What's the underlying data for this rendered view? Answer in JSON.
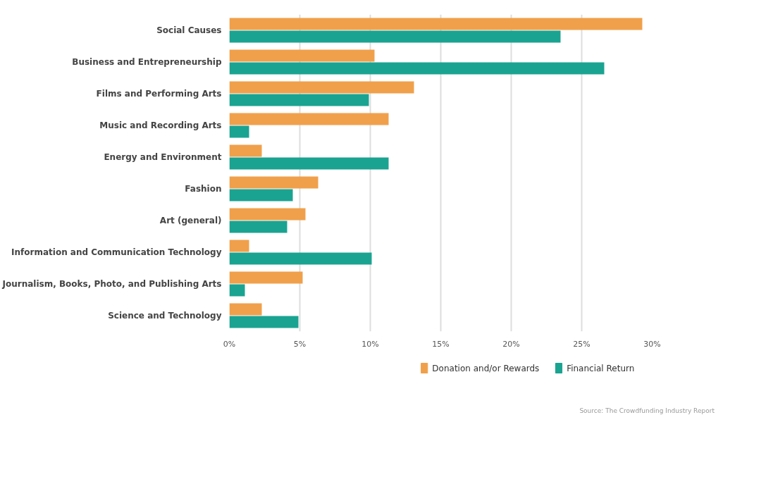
{
  "chart_data": {
    "type": "bar",
    "orientation": "horizontal",
    "categories": [
      "Social Causes",
      "Business and Entrepreneurship",
      "Films and Performing Arts",
      "Music and Recording Arts",
      "Energy and Environment",
      "Fashion",
      "Art (general)",
      "Information and Communication Technology",
      "Journalism, Books, Photo, and Publishing Arts",
      "Science and Technology"
    ],
    "series": [
      {
        "name": "Donation and/or Rewards",
        "color": "#f0a04b",
        "values": [
          29.3,
          10.3,
          13.1,
          11.3,
          2.3,
          6.3,
          5.4,
          1.4,
          5.2,
          2.3
        ]
      },
      {
        "name": "Financial Return",
        "color": "#1aa391",
        "values": [
          23.5,
          26.6,
          9.9,
          1.4,
          11.3,
          4.5,
          4.1,
          10.1,
          1.1,
          4.9
        ]
      }
    ],
    "xlim": [
      0,
      30
    ],
    "xticks": [
      {
        "value": 0,
        "label": "0%"
      },
      {
        "value": 5,
        "label": "5%"
      },
      {
        "value": 10,
        "label": "10%"
      },
      {
        "value": 15,
        "label": "15%"
      },
      {
        "value": 20,
        "label": "20%"
      },
      {
        "value": 25,
        "label": "25%"
      },
      {
        "value": 30,
        "label": "30%"
      }
    ],
    "grid": "x",
    "legend": "bottom",
    "annotations": [
      "Source: The Crowdfunding Industry Report"
    ]
  }
}
